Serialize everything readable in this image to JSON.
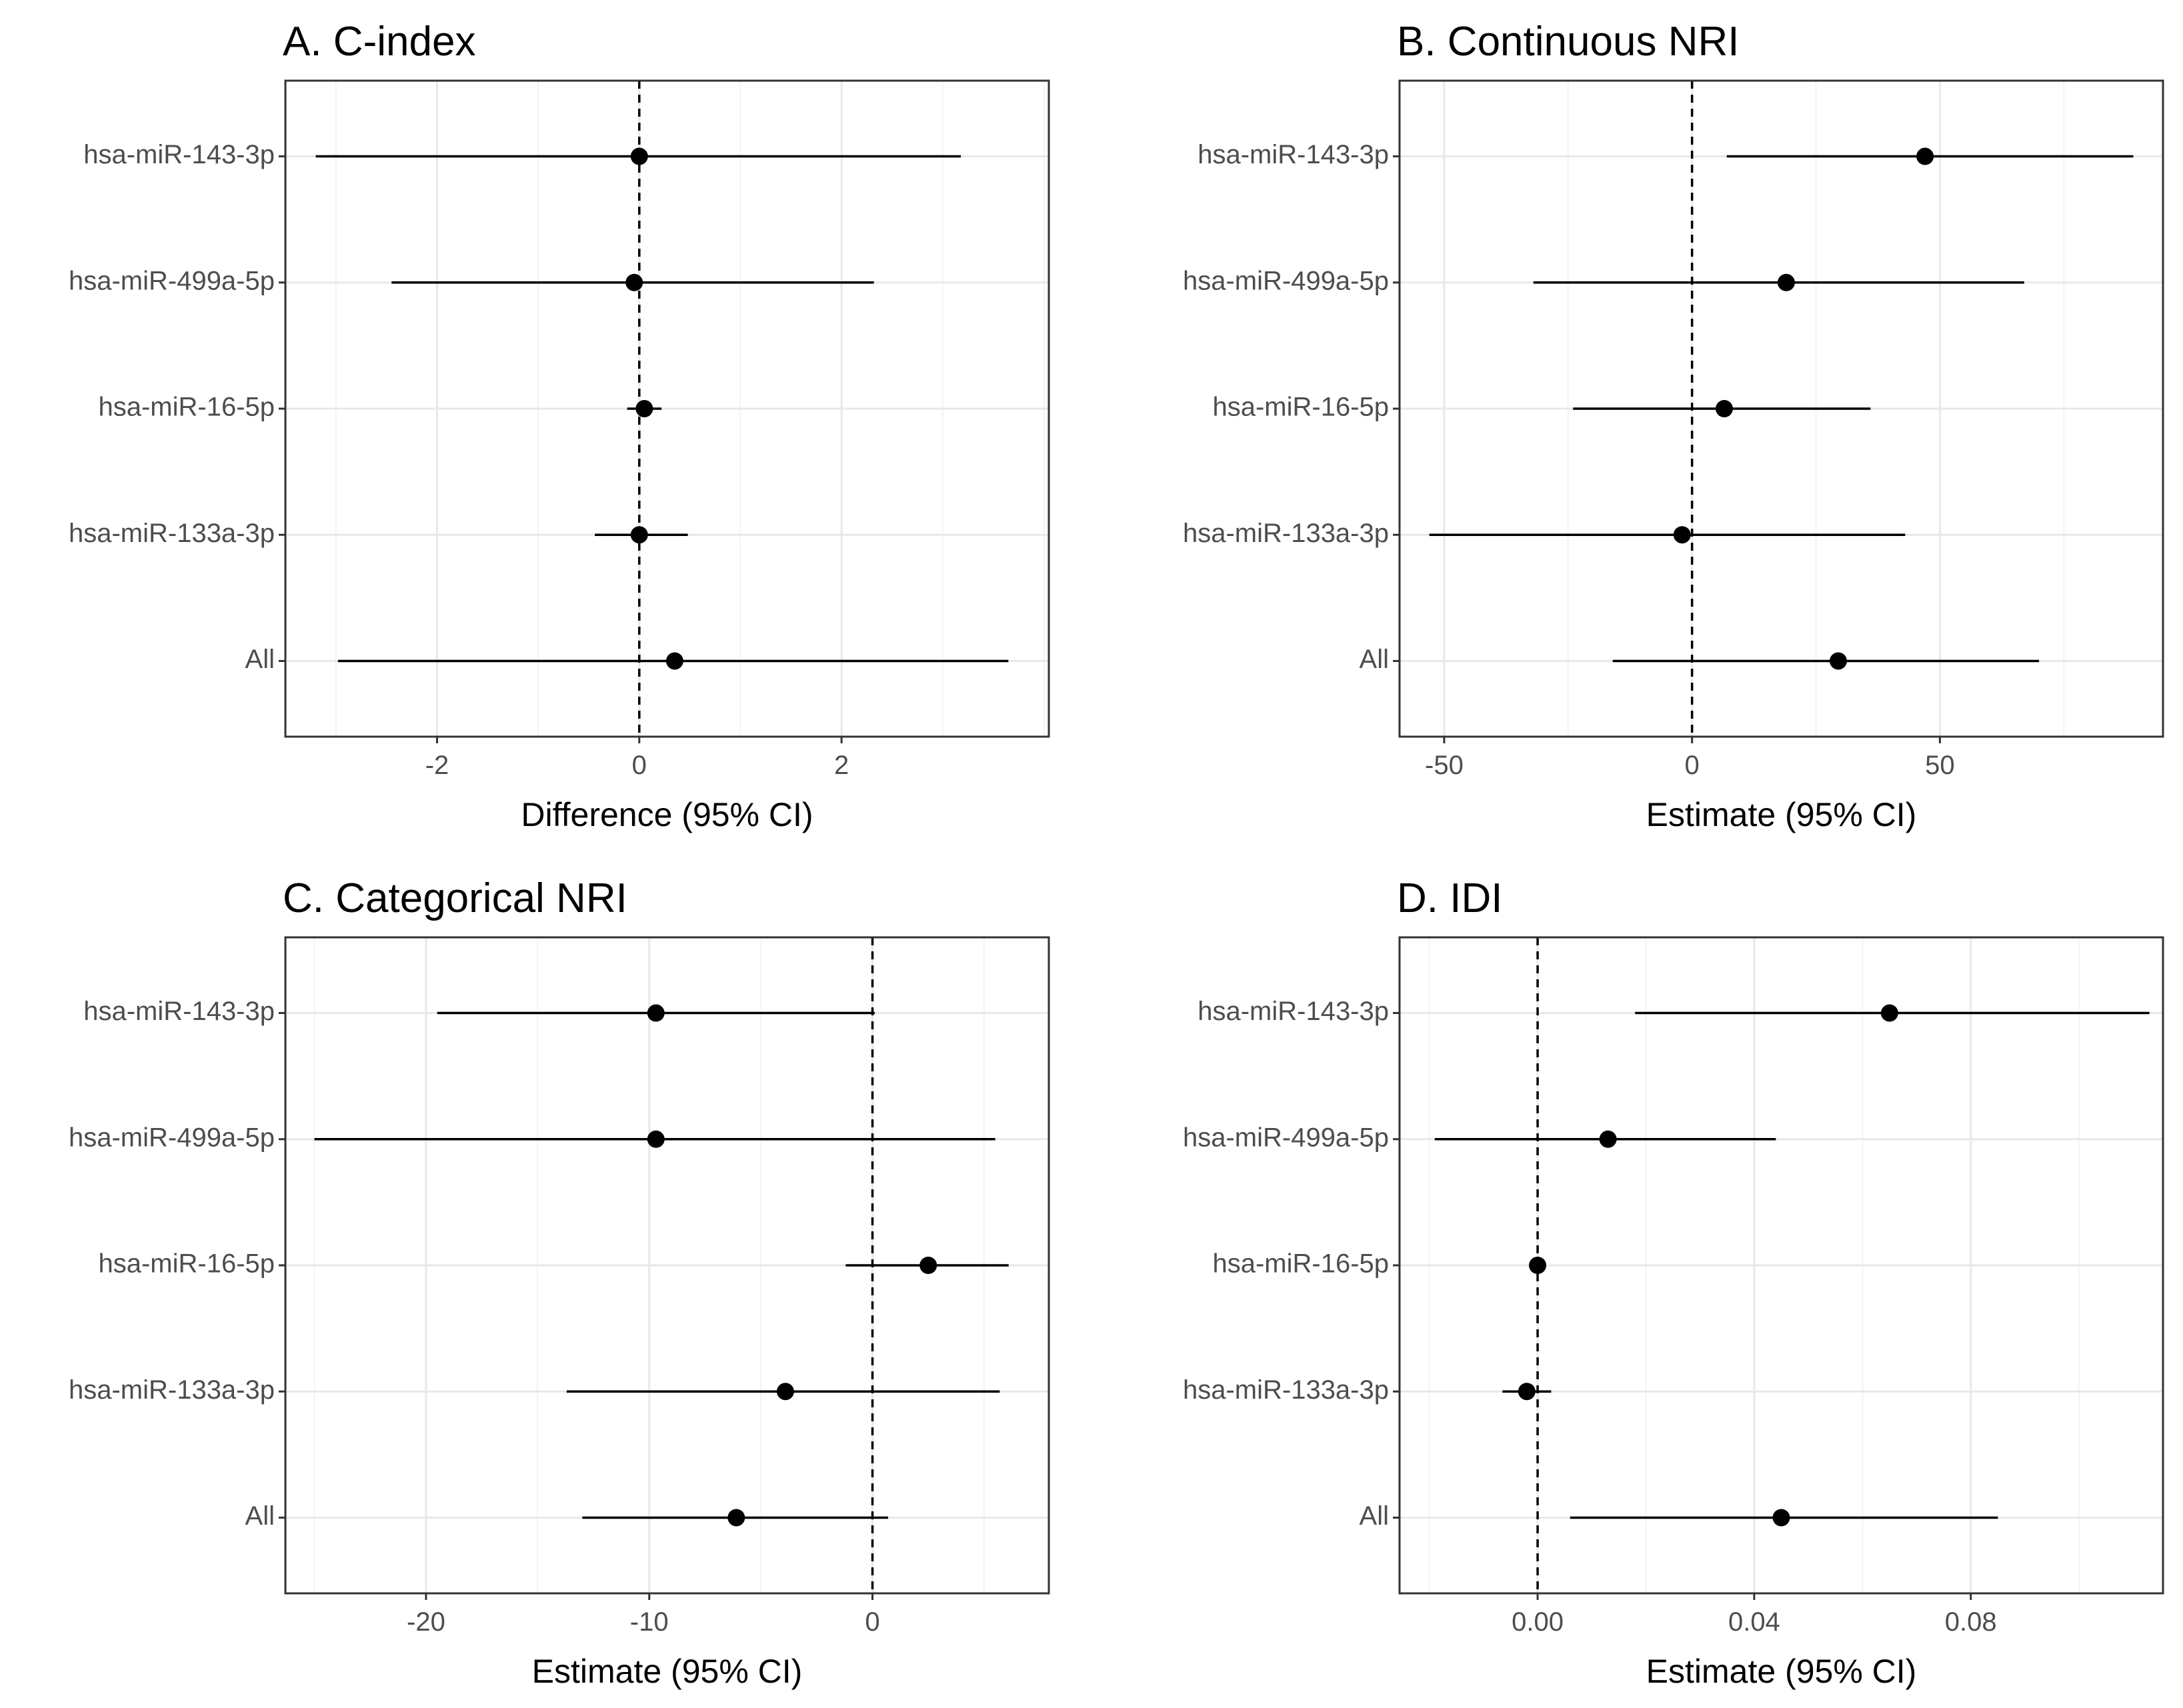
{
  "chart_data": [
    {
      "type": "forest",
      "title": "A. C-index",
      "xlabel": "Difference (95% CI)",
      "ylabel": "",
      "xlim": [
        -3.5,
        4.05
      ],
      "xticks": [
        -2,
        0,
        2
      ],
      "xtick_labels": [
        "-2",
        "0",
        "2"
      ],
      "reference_line": 0,
      "categories": [
        "hsa-miR-143-3p",
        "hsa-miR-499a-5p",
        "hsa-miR-16-5p",
        "hsa-miR-133a-3p",
        "All"
      ],
      "estimates": [
        0.0,
        -0.05,
        0.05,
        0.0,
        0.35
      ],
      "lower": [
        -3.2,
        -2.45,
        -0.12,
        -0.44,
        -2.98
      ],
      "upper": [
        3.18,
        2.32,
        0.22,
        0.48,
        3.65
      ]
    },
    {
      "type": "forest",
      "title": "B. Continuous NRI",
      "xlabel": "Estimate (95% CI)",
      "ylabel": "",
      "xlim": [
        -59,
        95
      ],
      "xticks": [
        -50,
        0,
        50
      ],
      "xtick_labels": [
        "-50",
        "0",
        "50"
      ],
      "reference_line": 0,
      "categories": [
        "hsa-miR-143-3p",
        "hsa-miR-499a-5p",
        "hsa-miR-16-5p",
        "hsa-miR-133a-3p",
        "All"
      ],
      "estimates": [
        47,
        19,
        6.5,
        -2,
        29.5
      ],
      "lower": [
        7,
        -32,
        -24,
        -53,
        -16
      ],
      "upper": [
        89,
        67,
        36,
        43,
        70
      ]
    },
    {
      "type": "forest",
      "title": "C. Categorical NRI",
      "xlabel": "Estimate (95% CI)",
      "ylabel": "",
      "xlim": [
        -26.3,
        7.9
      ],
      "xticks": [
        -20,
        -10,
        0
      ],
      "xtick_labels": [
        "-20",
        "-10",
        "0"
      ],
      "reference_line": 0,
      "categories": [
        "hsa-miR-143-3p",
        "hsa-miR-499a-5p",
        "hsa-miR-16-5p",
        "hsa-miR-133a-3p",
        "All"
      ],
      "estimates": [
        -9.7,
        -9.7,
        2.5,
        -3.9,
        -6.1
      ],
      "lower": [
        -19.5,
        -25,
        -1.2,
        -13.7,
        -13
      ],
      "upper": [
        0.1,
        5.5,
        6.1,
        5.7,
        0.7
      ]
    },
    {
      "type": "forest",
      "title": "D. IDI",
      "xlabel": "Estimate (95% CI)",
      "ylabel": "",
      "xlim": [
        -0.0255,
        0.1155
      ],
      "xticks": [
        0.0,
        0.04,
        0.08
      ],
      "xtick_labels": [
        "0.00",
        "0.04",
        "0.08"
      ],
      "reference_line": 0,
      "categories": [
        "hsa-miR-143-3p",
        "hsa-miR-499a-5p",
        "hsa-miR-16-5p",
        "hsa-miR-133a-3p",
        "All"
      ],
      "estimates": [
        0.065,
        0.013,
        0.0,
        -0.002,
        0.045
      ],
      "lower": [
        0.018,
        -0.019,
        0.0,
        -0.0065,
        0.006
      ],
      "upper": [
        0.113,
        0.044,
        0.0,
        0.0025,
        0.085
      ]
    }
  ]
}
